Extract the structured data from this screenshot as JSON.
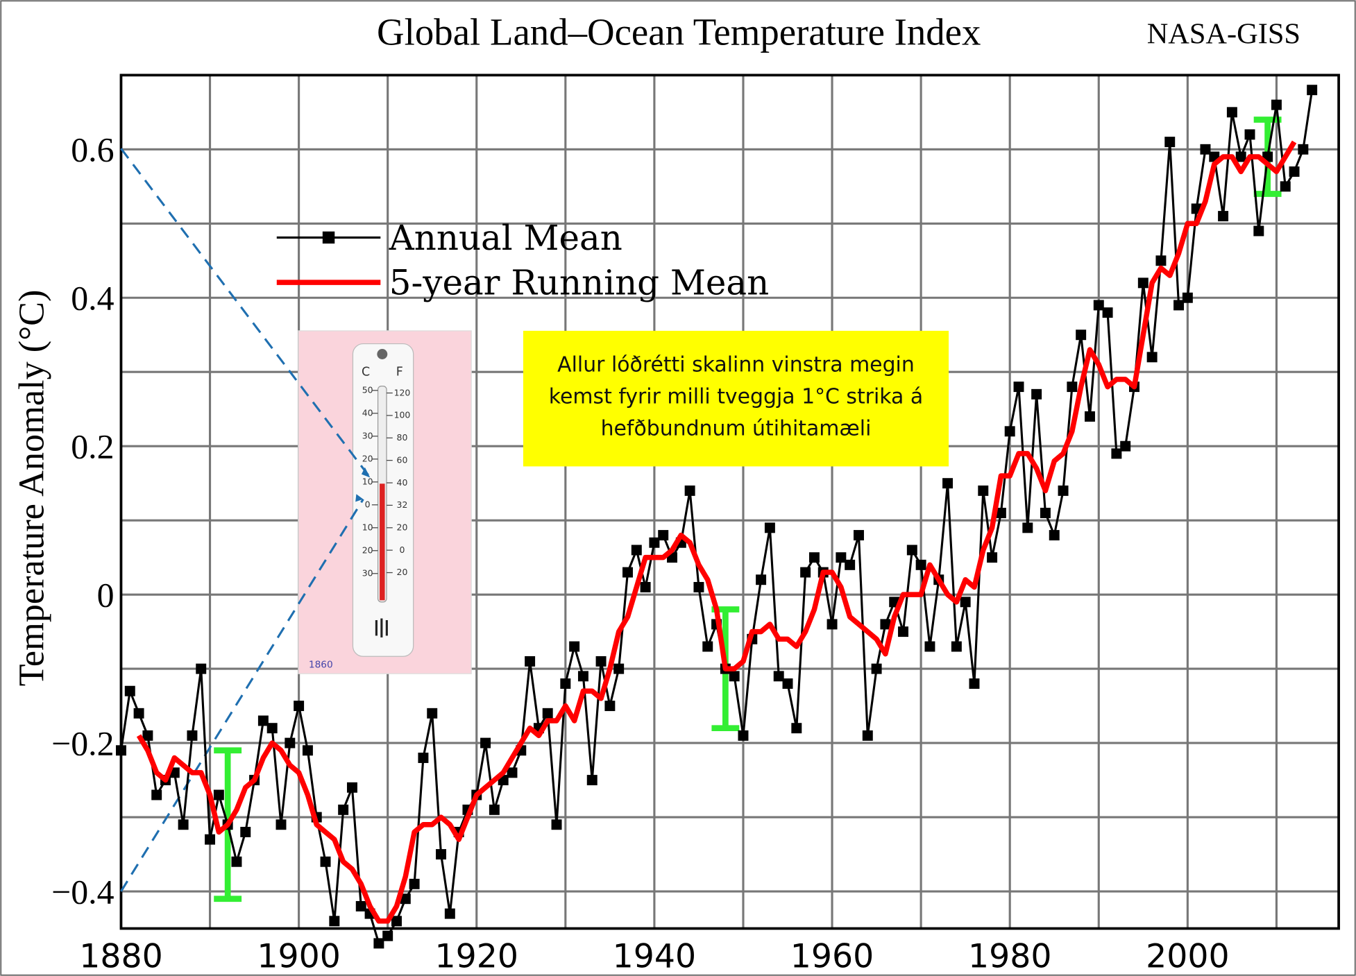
{
  "chart_data": {
    "type": "line",
    "title": "Global Land–Ocean Temperature Index",
    "source": "NASA-GISS",
    "y_label": "Temperature Anomaly (°C)",
    "xlim": [
      1880,
      2017
    ],
    "ylim": [
      -0.45,
      0.7
    ],
    "xticks": [
      1880,
      1900,
      1920,
      1940,
      1960,
      1980,
      2000
    ],
    "yticks": [
      {
        "value": -0.4,
        "label": "−0.4"
      },
      {
        "value": -0.2,
        "label": "−0.2"
      },
      0,
      0.2,
      0.4,
      0.6
    ],
    "minor_xticks": [
      1890,
      1910,
      1930,
      1950,
      1970,
      1990,
      2010
    ],
    "minor_yticks": [
      -0.3,
      -0.1,
      0.1,
      0.3,
      0.5
    ],
    "grid": true,
    "series": [
      {
        "name": "Annual Mean",
        "color": "#000000",
        "marker": "square",
        "x": [
          1880,
          1881,
          1882,
          1883,
          1884,
          1885,
          1886,
          1887,
          1888,
          1889,
          1890,
          1891,
          1892,
          1893,
          1894,
          1895,
          1896,
          1897,
          1898,
          1899,
          1900,
          1901,
          1902,
          1903,
          1904,
          1905,
          1906,
          1907,
          1908,
          1909,
          1910,
          1911,
          1912,
          1913,
          1914,
          1915,
          1916,
          1917,
          1918,
          1919,
          1920,
          1921,
          1922,
          1923,
          1924,
          1925,
          1926,
          1927,
          1928,
          1929,
          1930,
          1931,
          1932,
          1933,
          1934,
          1935,
          1936,
          1937,
          1938,
          1939,
          1940,
          1941,
          1942,
          1943,
          1944,
          1945,
          1946,
          1947,
          1948,
          1949,
          1950,
          1951,
          1952,
          1953,
          1954,
          1955,
          1956,
          1957,
          1958,
          1959,
          1960,
          1961,
          1962,
          1963,
          1964,
          1965,
          1966,
          1967,
          1968,
          1969,
          1970,
          1971,
          1972,
          1973,
          1974,
          1975,
          1976,
          1977,
          1978,
          1979,
          1980,
          1981,
          1982,
          1983,
          1984,
          1985,
          1986,
          1987,
          1988,
          1989,
          1990,
          1991,
          1992,
          1993,
          1994,
          1995,
          1996,
          1997,
          1998,
          1999,
          2000,
          2001,
          2002,
          2003,
          2004,
          2005,
          2006,
          2007,
          2008,
          2009,
          2010,
          2011,
          2012,
          2013,
          2014
        ],
        "values": [
          -0.21,
          -0.13,
          -0.16,
          -0.19,
          -0.27,
          -0.25,
          -0.24,
          -0.31,
          -0.19,
          -0.1,
          -0.33,
          -0.27,
          -0.31,
          -0.36,
          -0.32,
          -0.25,
          -0.17,
          -0.18,
          -0.31,
          -0.2,
          -0.15,
          -0.21,
          -0.3,
          -0.36,
          -0.44,
          -0.29,
          -0.26,
          -0.42,
          -0.43,
          -0.47,
          -0.46,
          -0.44,
          -0.41,
          -0.39,
          -0.22,
          -0.16,
          -0.35,
          -0.43,
          -0.32,
          -0.29,
          -0.27,
          -0.2,
          -0.29,
          -0.25,
          -0.24,
          -0.21,
          -0.09,
          -0.18,
          -0.16,
          -0.31,
          -0.12,
          -0.07,
          -0.11,
          -0.25,
          -0.09,
          -0.15,
          -0.1,
          0.03,
          0.06,
          0.01,
          0.07,
          0.08,
          0.05,
          0.07,
          0.14,
          0.01,
          -0.07,
          -0.04,
          -0.1,
          -0.11,
          -0.19,
          -0.06,
          0.02,
          0.09,
          -0.11,
          -0.12,
          -0.18,
          0.03,
          0.05,
          0.03,
          -0.04,
          0.05,
          0.04,
          0.08,
          -0.19,
          -0.1,
          -0.04,
          -0.01,
          -0.05,
          0.06,
          0.04,
          -0.07,
          0.02,
          0.15,
          -0.07,
          -0.01,
          -0.12,
          0.14,
          0.05,
          0.11,
          0.22,
          0.28,
          0.09,
          0.27,
          0.11,
          0.08,
          0.14,
          0.28,
          0.35,
          0.24,
          0.39,
          0.38,
          0.19,
          0.2,
          0.28,
          0.42,
          0.32,
          0.45,
          0.61,
          0.39,
          0.4,
          0.52,
          0.6,
          0.59,
          0.51,
          0.65,
          0.59,
          0.62,
          0.49,
          0.59,
          0.66,
          0.55,
          0.57,
          0.6,
          0.68
        ]
      },
      {
        "name": "5-year Running Mean",
        "color": "#ff0000",
        "x": [
          1882,
          1883,
          1884,
          1885,
          1886,
          1887,
          1888,
          1889,
          1890,
          1891,
          1892,
          1893,
          1894,
          1895,
          1896,
          1897,
          1898,
          1899,
          1900,
          1901,
          1902,
          1903,
          1904,
          1905,
          1906,
          1907,
          1908,
          1909,
          1910,
          1911,
          1912,
          1913,
          1914,
          1915,
          1916,
          1917,
          1918,
          1919,
          1920,
          1921,
          1922,
          1923,
          1924,
          1925,
          1926,
          1927,
          1928,
          1929,
          1930,
          1931,
          1932,
          1933,
          1934,
          1935,
          1936,
          1937,
          1938,
          1939,
          1940,
          1941,
          1942,
          1943,
          1944,
          1945,
          1946,
          1947,
          1948,
          1949,
          1950,
          1951,
          1952,
          1953,
          1954,
          1955,
          1956,
          1957,
          1958,
          1959,
          1960,
          1961,
          1962,
          1963,
          1964,
          1965,
          1966,
          1967,
          1968,
          1969,
          1970,
          1971,
          1972,
          1973,
          1974,
          1975,
          1976,
          1977,
          1978,
          1979,
          1980,
          1981,
          1982,
          1983,
          1984,
          1985,
          1986,
          1987,
          1988,
          1989,
          1990,
          1991,
          1992,
          1993,
          1994,
          1995,
          1996,
          1997,
          1998,
          1999,
          2000,
          2001,
          2002,
          2003,
          2004,
          2005,
          2006,
          2007,
          2008,
          2009,
          2010,
          2011,
          2012
        ],
        "values": [
          -0.19,
          -0.21,
          -0.24,
          -0.25,
          -0.22,
          -0.23,
          -0.24,
          -0.24,
          -0.27,
          -0.32,
          -0.31,
          -0.29,
          -0.26,
          -0.25,
          -0.22,
          -0.2,
          -0.21,
          -0.23,
          -0.24,
          -0.27,
          -0.31,
          -0.32,
          -0.33,
          -0.36,
          -0.37,
          -0.39,
          -0.42,
          -0.44,
          -0.44,
          -0.42,
          -0.38,
          -0.32,
          -0.31,
          -0.31,
          -0.3,
          -0.31,
          -0.33,
          -0.3,
          -0.27,
          -0.26,
          -0.25,
          -0.24,
          -0.22,
          -0.2,
          -0.18,
          -0.19,
          -0.17,
          -0.17,
          -0.15,
          -0.17,
          -0.13,
          -0.13,
          -0.14,
          -0.1,
          -0.05,
          -0.03,
          0.01,
          0.05,
          0.05,
          0.05,
          0.06,
          0.08,
          0.07,
          0.04,
          0.02,
          -0.02,
          -0.1,
          -0.1,
          -0.09,
          -0.05,
          -0.05,
          -0.04,
          -0.06,
          -0.06,
          -0.07,
          -0.05,
          -0.02,
          0.03,
          0.03,
          0.01,
          -0.03,
          -0.04,
          -0.05,
          -0.06,
          -0.08,
          -0.03,
          0,
          0,
          0,
          0.04,
          0.02,
          0,
          -0.01,
          0.02,
          0.01,
          0.06,
          0.09,
          0.16,
          0.16,
          0.19,
          0.19,
          0.17,
          0.14,
          0.18,
          0.19,
          0.22,
          0.28,
          0.33,
          0.31,
          0.28,
          0.29,
          0.29,
          0.28,
          0.35,
          0.42,
          0.44,
          0.43,
          0.46,
          0.5,
          0.5,
          0.53,
          0.58,
          0.59,
          0.59,
          0.57,
          0.59,
          0.59,
          0.58,
          0.57,
          0.59,
          0.61
        ]
      }
    ],
    "uncertainty": {
      "color": "#33ee33",
      "bars": [
        {
          "x": 1892,
          "low": -0.41,
          "high": -0.21
        },
        {
          "x": 1948,
          "low": -0.18,
          "high": -0.02
        },
        {
          "x": 2009,
          "low": 0.54,
          "high": 0.64
        }
      ]
    },
    "annotation": {
      "lines": [
        "Allur lóðrétti skalinn vinstra megin",
        "kemst fyrir milli tveggja 1°C strika á",
        "hefðbundnum útihitamæli"
      ],
      "color": "#ffff00"
    },
    "thermometer": {
      "c": "C",
      "f": "F",
      "celsius": [
        "50",
        "40",
        "30",
        "20",
        "10",
        "0",
        "10",
        "20",
        "30"
      ],
      "fahrenheit": [
        "120",
        "100",
        "80",
        "60",
        "40",
        "32",
        "20",
        "0",
        "20"
      ],
      "caption": "1860"
    }
  }
}
